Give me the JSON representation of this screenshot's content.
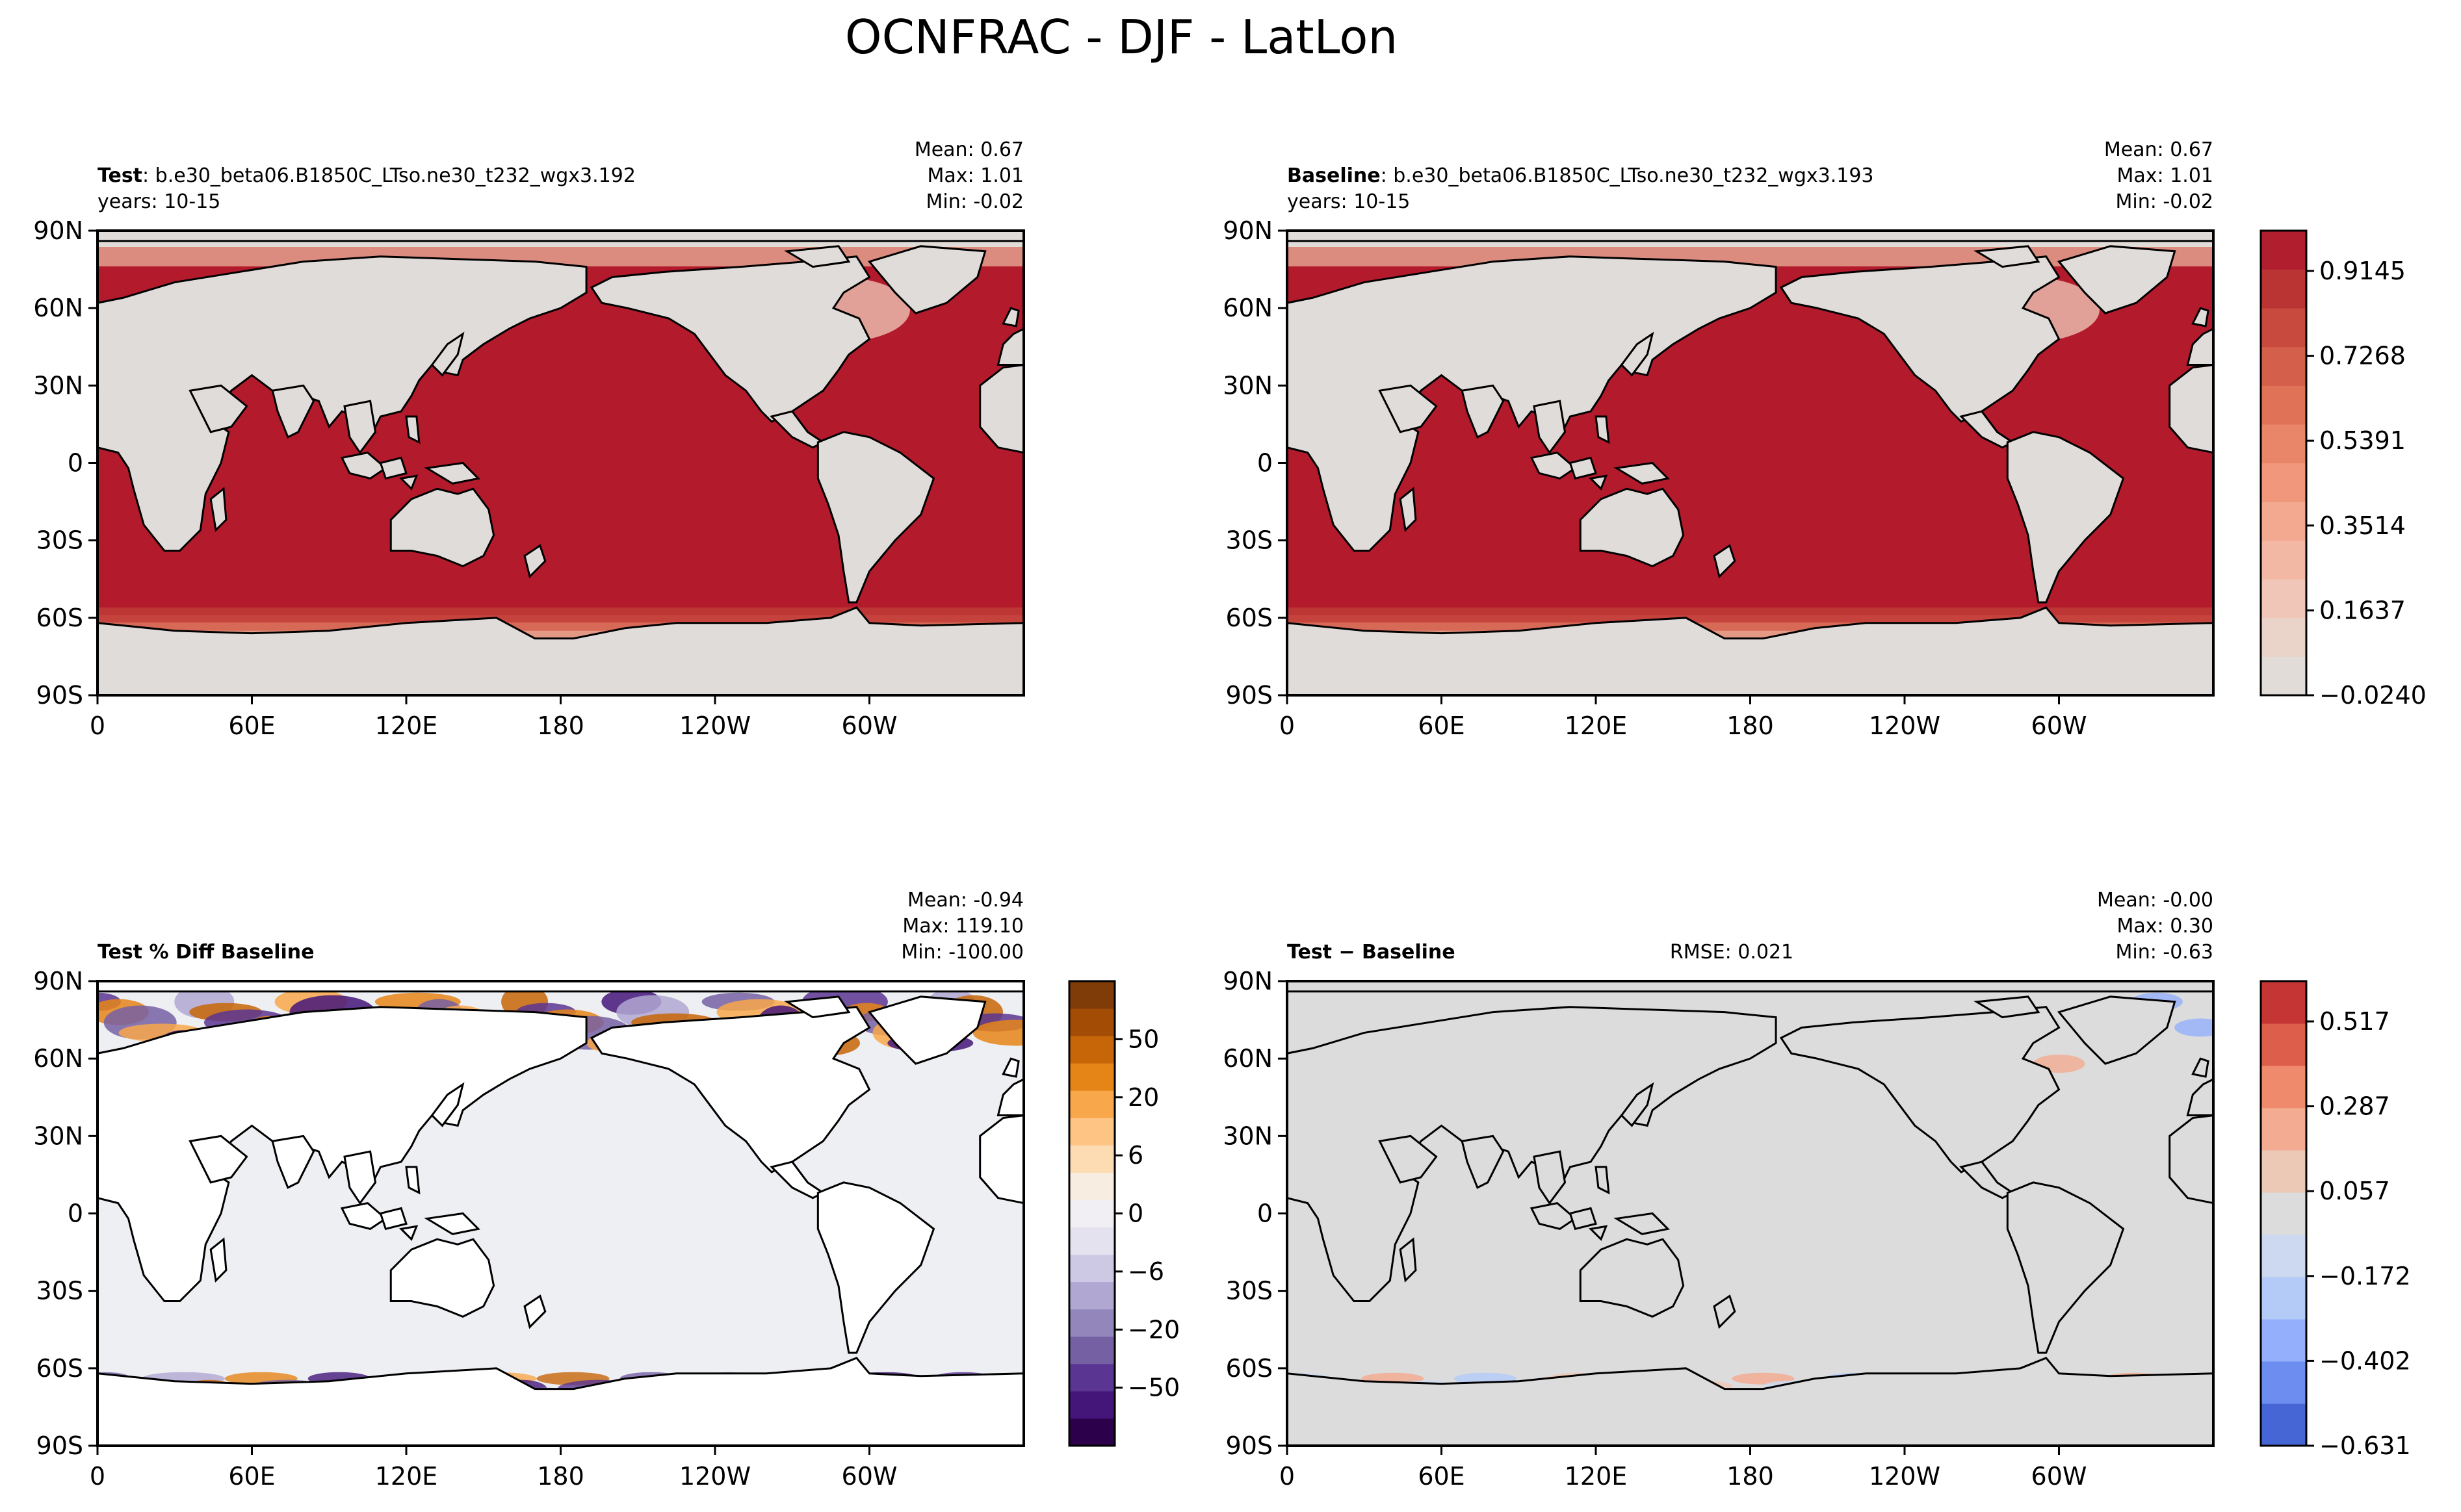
{
  "figure": {
    "title": "OCNFRAC - DJF - LatLon"
  },
  "axes": {
    "x_ticks": [
      "0",
      "60E",
      "120E",
      "180",
      "120W",
      "60W"
    ],
    "y_ticks": [
      "90N",
      "60N",
      "30N",
      "0",
      "30S",
      "60S",
      "90S"
    ]
  },
  "panels": [
    {
      "id": "test",
      "label_bold": "Test",
      "label_rest": ": b.e30_beta06.B1850C_LTso.ne30_t232_wgx3.192",
      "years": "years: 10-15",
      "stats": [
        "Mean:  0.67",
        "Max:  1.01",
        "Min: -0.02"
      ]
    },
    {
      "id": "baseline",
      "label_bold": "Baseline",
      "label_rest": ": b.e30_beta06.B1850C_LTso.ne30_t232_wgx3.193",
      "years": "years: 10-15",
      "stats": [
        "Mean:  0.67",
        "Max:  1.01",
        "Min: -0.02"
      ]
    },
    {
      "id": "pctdiff",
      "label_bold": "Test % Diff Baseline",
      "stats": [
        "Mean: -0.94",
        "Max: 119.10",
        "Min: -100.00"
      ]
    },
    {
      "id": "diff",
      "label_bold": "Test − Baseline",
      "rmse": "RMSE: 0.021",
      "stats": [
        "Mean: -0.00",
        "Max:  0.30",
        "Min: -0.63"
      ]
    }
  ],
  "colorbars": {
    "main": {
      "ticks": [
        "0.9145",
        "0.7268",
        "0.5391",
        "0.3514",
        "0.1637",
        "−0.0240"
      ],
      "colors": [
        "#e2dcd9",
        "#ead3c9",
        "#efc6b7",
        "#f2b8a3",
        "#f3a890",
        "#f0977c",
        "#e98569",
        "#e07258",
        "#d45f4a",
        "#c84a3f",
        "#bb3434",
        "#b11f2e"
      ]
    },
    "pct": {
      "ticks": [
        "50",
        "20",
        "6",
        "0",
        "−6",
        "−20",
        "−50"
      ],
      "colors": [
        "#2d004b",
        "#44167a",
        "#5a3592",
        "#7560a4",
        "#9286bb",
        "#b0a8d2",
        "#cdc8e4",
        "#e5e2ef",
        "#f1eff3",
        "#f7ede0",
        "#fddcb4",
        "#fdc484",
        "#f8a74a",
        "#e58517",
        "#c76608",
        "#a24c06",
        "#7f3b08"
      ]
    },
    "diff": {
      "ticks": [
        "0.517",
        "0.287",
        "0.057",
        "−0.172",
        "−0.402",
        "−0.631"
      ],
      "colors": [
        "#4766d6",
        "#6d8df0",
        "#94b0fc",
        "#b5cbf7",
        "#ccd9f0",
        "#dcdcdc",
        "#ecc8b6",
        "#f3ac92",
        "#ef8a6d",
        "#dd5f4b",
        "#c43534"
      ]
    }
  },
  "chart_data": [
    {
      "type": "heatmap",
      "title": "Test : b.e30_beta06.B1850C_LTso.ne30_t232_wgx3.192",
      "subtitle": "years: 10-15",
      "xlabel": "",
      "ylabel": "",
      "xlim": [
        0,
        360
      ],
      "ylim": [
        -90,
        90
      ],
      "x_tick_labels": [
        "0",
        "60E",
        "120E",
        "180",
        "120W",
        "60W"
      ],
      "y_tick_labels": [
        "90S",
        "60S",
        "30S",
        "0",
        "30N",
        "60N",
        "90N"
      ],
      "stats": {
        "mean": 0.67,
        "max": 1.01,
        "min": -0.02
      },
      "colorbar_range": [
        -0.024,
        1.01
      ]
    },
    {
      "type": "heatmap",
      "title": "Baseline : b.e30_beta06.B1850C_LTso.ne30_t232_wgx3.193",
      "subtitle": "years: 10-15",
      "xlabel": "",
      "ylabel": "",
      "xlim": [
        0,
        360
      ],
      "ylim": [
        -90,
        90
      ],
      "stats": {
        "mean": 0.67,
        "max": 1.01,
        "min": -0.02
      },
      "colorbar_ticks": [
        -0.024,
        0.1637,
        0.3514,
        0.5391,
        0.7268,
        0.9145
      ]
    },
    {
      "type": "heatmap",
      "title": "Test % Diff Baseline",
      "xlabel": "",
      "ylabel": "",
      "xlim": [
        0,
        360
      ],
      "ylim": [
        -90,
        90
      ],
      "stats": {
        "mean": -0.94,
        "max": 119.1,
        "min": -100.0
      },
      "colorbar_ticks": [
        -50,
        -20,
        -6,
        0,
        6,
        20,
        50
      ]
    },
    {
      "type": "heatmap",
      "title": "Test − Baseline",
      "xlabel": "",
      "ylabel": "",
      "xlim": [
        0,
        360
      ],
      "ylim": [
        -90,
        90
      ],
      "stats": {
        "mean": -0.0,
        "max": 0.3,
        "min": -0.63,
        "rmse": 0.021
      },
      "colorbar_ticks": [
        -0.631,
        -0.402,
        -0.172,
        0.057,
        0.287,
        0.517
      ]
    }
  ],
  "colors": {
    "ocean_full": "#b31b2d",
    "land_main": "#e0dcd9",
    "land_pct": "#ffffff",
    "ocean_pct": "#eeeff2",
    "diff_bg": "#dcdcdc",
    "coast": "#000000"
  }
}
